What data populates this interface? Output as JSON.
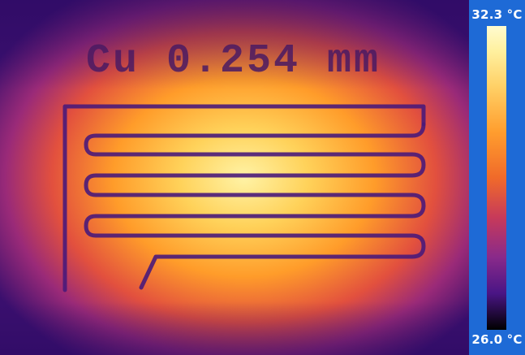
{
  "image": {
    "sample_label": "Cu 0.254 mm",
    "colorbar": {
      "max_label": "32.3 °C",
      "min_label": "26.0 °C"
    },
    "colors": {
      "background_cold": "#2b0a63",
      "hot": "#ffdf6a",
      "trace": "#4a1a7a",
      "sidebar": "#1e6ad6"
    }
  }
}
